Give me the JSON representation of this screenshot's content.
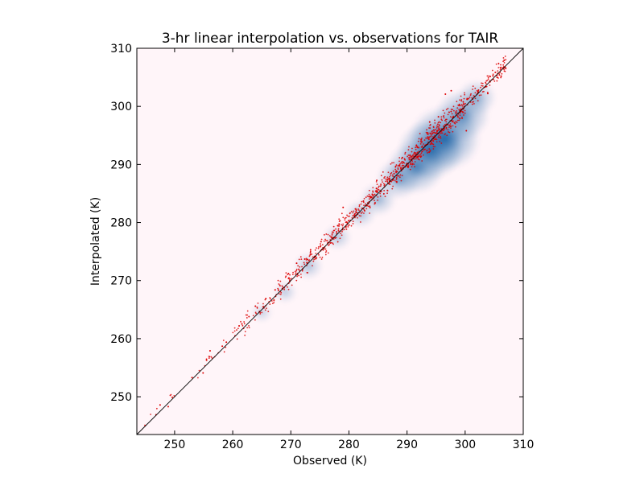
{
  "chart_data": {
    "type": "scatter",
    "title": "3-hr linear interpolation vs. observations for TAIR",
    "xlabel": "Observed (K)",
    "ylabel": "Interpolated (K)",
    "xlim": [
      243.5,
      310
    ],
    "ylim": [
      243.5,
      310
    ],
    "xticks": [
      250,
      260,
      270,
      280,
      290,
      300,
      310
    ],
    "yticks": [
      250,
      260,
      270,
      280,
      290,
      300,
      310
    ],
    "grid": false,
    "legend": "none",
    "background_color": "#fff5f9",
    "point_color": "#dd0000",
    "density_color": "#08519c",
    "reference_line": {
      "from": [
        243.5,
        243.5
      ],
      "to": [
        310,
        310
      ],
      "color": "#000000"
    },
    "density_peaks": [
      {
        "x": 296.5,
        "y": 294.5,
        "weight": 1.0
      },
      {
        "x": 294.0,
        "y": 292.5,
        "weight": 0.9
      },
      {
        "x": 291.5,
        "y": 289.5,
        "weight": 0.75
      },
      {
        "x": 299.5,
        "y": 298.5,
        "weight": 0.7
      },
      {
        "x": 288.5,
        "y": 287.5,
        "weight": 0.5
      },
      {
        "x": 285.0,
        "y": 284.0,
        "weight": 0.35
      },
      {
        "x": 302.0,
        "y": 301.5,
        "weight": 0.4
      },
      {
        "x": 282.0,
        "y": 281.5,
        "weight": 0.25
      },
      {
        "x": 278.0,
        "y": 277.5,
        "weight": 0.2
      },
      {
        "x": 273.0,
        "y": 272.5,
        "weight": 0.22
      },
      {
        "x": 269.0,
        "y": 268.0,
        "weight": 0.12
      },
      {
        "x": 265.0,
        "y": 264.5,
        "weight": 0.08
      }
    ],
    "point_bands": [
      {
        "x_start": 244.0,
        "x_end": 252.0,
        "count": 6,
        "spread": 1.2
      },
      {
        "x_start": 252.0,
        "x_end": 260.0,
        "count": 14,
        "spread": 1.4
      },
      {
        "x_start": 260.0,
        "x_end": 268.0,
        "count": 60,
        "spread": 1.6
      },
      {
        "x_start": 268.0,
        "x_end": 276.0,
        "count": 120,
        "spread": 1.7
      },
      {
        "x_start": 276.0,
        "x_end": 284.0,
        "count": 170,
        "spread": 1.8
      },
      {
        "x_start": 284.0,
        "x_end": 292.0,
        "count": 240,
        "spread": 2.0
      },
      {
        "x_start": 292.0,
        "x_end": 300.0,
        "count": 280,
        "spread": 2.2
      },
      {
        "x_start": 300.0,
        "x_end": 307.0,
        "count": 110,
        "spread": 1.8
      }
    ],
    "series": [
      {
        "values": [
          [
            246.8,
            246.9
          ],
          [
            247.5,
            248.6
          ],
          [
            248.9,
            248.3
          ],
          [
            249.6,
            249.9
          ],
          [
            253.0,
            253.3
          ],
          [
            254.9,
            254.1
          ],
          [
            255.5,
            256.3
          ],
          [
            256.1,
            257.9
          ],
          [
            258.2,
            258.7
          ],
          [
            258.9,
            259.4
          ],
          [
            261.1,
            262.2
          ],
          [
            262.8,
            263.8
          ],
          [
            263.9,
            265.6
          ],
          [
            265.7,
            266.9
          ],
          [
            267.3,
            268.4
          ],
          [
            269.6,
            271.2
          ],
          [
            271.0,
            273.0
          ],
          [
            272.4,
            273.7
          ],
          [
            273.4,
            275.3
          ],
          [
            275.2,
            276.7
          ],
          [
            276.8,
            277.0
          ],
          [
            279.0,
            282.6
          ],
          [
            282.5,
            283.7
          ],
          [
            284.9,
            285.4
          ],
          [
            287.0,
            287.5
          ],
          [
            289.2,
            291.2
          ],
          [
            291.8,
            291.2
          ],
          [
            293.9,
            297.3
          ],
          [
            295.4,
            298.2
          ],
          [
            296.6,
            302.1
          ],
          [
            297.6,
            302.7
          ],
          [
            298.0,
            298.2
          ],
          [
            300.2,
            295.8
          ],
          [
            302.3,
            302.8
          ],
          [
            303.9,
            302.2
          ],
          [
            305.5,
            305.0
          ],
          [
            306.2,
            305.2
          ]
        ]
      }
    ]
  }
}
